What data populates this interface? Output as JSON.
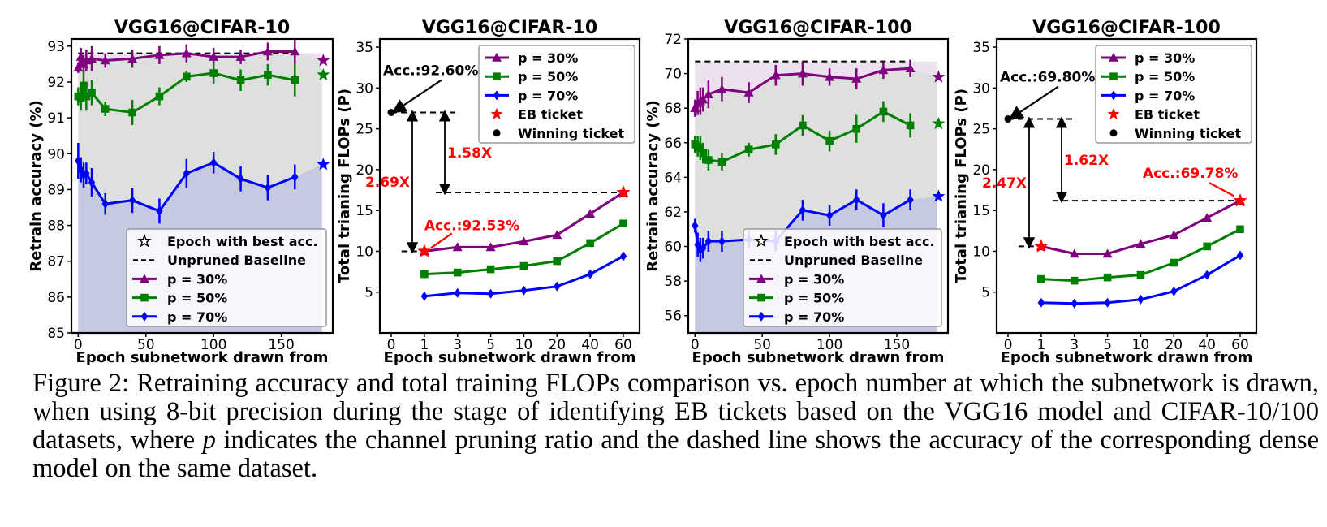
{
  "colors": {
    "p30": "#800080",
    "p50": "#008000",
    "p70": "#0000ff",
    "eb": "#ff0000",
    "win": "#000000",
    "fill30": "#ede0ef",
    "fill50": "#dde0dc",
    "fill70": "#c5c9e2",
    "annot": "#ff0000"
  },
  "caption": {
    "label": "Figure 2:",
    "part1": "Retraining accuracy and total training FLOPs comparison vs. epoch number at which the subnetwork is drawn, when using 8-bit precision during the stage of identifying EB tickets based on the VGG16 model and CIFAR-10/100 datasets, where",
    "symbol": "p",
    "part2": "indicates the channel pruning ratio and the dashed line shows the accuracy of the corresponding dense model on the same dataset."
  },
  "chart_data": [
    {
      "type": "line",
      "title": "VGG16@CIFAR-10",
      "xlabel": "Epoch subnetwork drawn from",
      "ylabel": "Retrain accuracy (%)",
      "xlim": [
        -5,
        188
      ],
      "ylim": [
        85,
        93.2
      ],
      "xticks": [
        0,
        50,
        100,
        150
      ],
      "yticks": [
        85,
        86,
        87,
        88,
        89,
        90,
        91,
        92,
        93
      ],
      "baseline": {
        "label": "Unpruned Baseline",
        "value": 92.8
      },
      "legend_position": "lower-right",
      "legend": [
        {
          "marker": "star-open",
          "label": "Epoch with best acc."
        },
        {
          "marker": "dash",
          "label": "Unpruned Baseline"
        },
        {
          "marker": "triangle",
          "series": "p30",
          "label": "p = 30%"
        },
        {
          "marker": "square",
          "series": "p50",
          "label": "p = 50%"
        },
        {
          "marker": "diamond",
          "series": "p70",
          "label": "p = 70%"
        }
      ],
      "series": [
        {
          "key": "p30",
          "name": "p = 30%",
          "x": [
            0,
            2,
            4,
            6,
            10,
            20,
            40,
            60,
            80,
            100,
            120,
            140,
            160
          ],
          "y": [
            92.4,
            92.7,
            92.5,
            92.6,
            92.65,
            92.6,
            92.65,
            92.75,
            92.8,
            92.7,
            92.7,
            92.85,
            92.85
          ],
          "err": [
            0.15,
            0.25,
            0.25,
            0.3,
            0.35,
            0.2,
            0.25,
            0.25,
            0.25,
            0.25,
            0.2,
            0.25,
            0.35
          ],
          "best": {
            "x": 181,
            "y": 92.6
          }
        },
        {
          "key": "p50",
          "name": "p = 50%",
          "x": [
            0,
            2,
            4,
            6,
            10,
            20,
            40,
            60,
            80,
            100,
            120,
            140,
            160
          ],
          "y": [
            91.6,
            91.55,
            91.9,
            91.6,
            91.7,
            91.25,
            91.15,
            91.6,
            92.15,
            92.25,
            92.05,
            92.2,
            92.05
          ],
          "err": [
            0.25,
            0.35,
            0.45,
            0.4,
            0.35,
            0.2,
            0.35,
            0.25,
            0.15,
            0.3,
            0.3,
            0.3,
            0.45
          ],
          "best": {
            "x": 181,
            "y": 92.2
          }
        },
        {
          "key": "p70",
          "name": "p = 70%",
          "x": [
            0,
            2,
            4,
            6,
            10,
            20,
            40,
            60,
            80,
            100,
            120,
            140,
            160
          ],
          "y": [
            89.8,
            89.55,
            89.4,
            89.45,
            89.2,
            88.6,
            88.7,
            88.4,
            89.45,
            89.75,
            89.3,
            89.05,
            89.35
          ],
          "err": [
            0.5,
            0.35,
            0.35,
            0.3,
            0.4,
            0.3,
            0.35,
            0.35,
            0.4,
            0.3,
            0.35,
            0.35,
            0.35
          ],
          "best": {
            "x": 181,
            "y": 89.7
          }
        }
      ]
    },
    {
      "type": "line",
      "title": "VGG16@CIFAR-10",
      "xlabel": "Epoch subnetwork drawn from",
      "ylabel": "Total trianing FLOPs (P)",
      "categories": [
        "0",
        "1",
        "3",
        "5",
        "10",
        "20",
        "40",
        "60"
      ],
      "ylim": [
        0,
        36
      ],
      "yticks": [
        5,
        10,
        15,
        20,
        25,
        30,
        35
      ],
      "legend_position": "upper-right",
      "legend": [
        {
          "marker": "triangle",
          "series": "p30",
          "label": "p = 30%"
        },
        {
          "marker": "square",
          "series": "p50",
          "label": "p = 50%"
        },
        {
          "marker": "diamond",
          "series": "p70",
          "label": "p = 70%"
        },
        {
          "marker": "star",
          "series": "eb",
          "label": "EB ticket"
        },
        {
          "marker": "dot",
          "series": "win",
          "label": "Winning ticket"
        }
      ],
      "series": [
        {
          "key": "p30",
          "name": "p = 30%",
          "y": [
            null,
            10.0,
            10.5,
            10.5,
            11.2,
            12.0,
            14.6,
            17.2
          ]
        },
        {
          "key": "p50",
          "name": "p = 50%",
          "y": [
            null,
            7.2,
            7.4,
            7.8,
            8.2,
            8.8,
            11.0,
            13.4
          ]
        },
        {
          "key": "p70",
          "name": "p = 70%",
          "y": [
            null,
            4.5,
            4.9,
            4.8,
            5.2,
            5.7,
            7.2,
            9.4
          ]
        }
      ],
      "eb_points": [
        {
          "x": "1",
          "y": 10.0
        },
        {
          "x": "60",
          "y": 17.2
        }
      ],
      "winning_ticket": {
        "x": "0",
        "y": 27.0
      },
      "annotations": {
        "winning_acc": "Acc.:92.60%",
        "eb_acc": "Acc.:92.53%",
        "ratio_long": "2.69X",
        "ratio_short": "1.58X"
      }
    },
    {
      "type": "line",
      "title": "VGG16@CIFAR-100",
      "xlabel": "Epoch subnetwork drawn from",
      "ylabel": "Retrain accuracy (%)",
      "xlim": [
        -5,
        188
      ],
      "ylim": [
        55,
        72
      ],
      "xticks": [
        0,
        50,
        100,
        150
      ],
      "yticks": [
        56,
        58,
        60,
        62,
        64,
        66,
        68,
        70,
        72
      ],
      "baseline": {
        "label": "Unpruned Baseline",
        "value": 70.7
      },
      "legend_position": "lower-right",
      "legend": [
        {
          "marker": "star-open",
          "label": "Epoch with best acc."
        },
        {
          "marker": "dash",
          "label": "Unpruned Baseline"
        },
        {
          "marker": "triangle",
          "series": "p30",
          "label": "p = 30%"
        },
        {
          "marker": "square",
          "series": "p50",
          "label": "p = 50%"
        },
        {
          "marker": "diamond",
          "series": "p70",
          "label": "p = 70%"
        }
      ],
      "series": [
        {
          "key": "p30",
          "name": "p = 30%",
          "x": [
            0,
            2,
            4,
            6,
            10,
            20,
            40,
            60,
            80,
            100,
            120,
            140,
            160
          ],
          "y": [
            68.0,
            68.3,
            68.4,
            68.5,
            68.8,
            69.1,
            68.9,
            69.9,
            70.0,
            69.8,
            69.7,
            70.2,
            70.3
          ],
          "err": [
            0.5,
            0.7,
            0.8,
            0.7,
            0.8,
            0.7,
            0.6,
            0.6,
            0.7,
            0.5,
            0.6,
            0.5,
            0.5
          ],
          "best": {
            "x": 181,
            "y": 69.8
          }
        },
        {
          "key": "p50",
          "name": "p = 50%",
          "x": [
            0,
            2,
            4,
            6,
            10,
            20,
            40,
            60,
            80,
            100,
            120,
            140,
            160
          ],
          "y": [
            65.9,
            65.8,
            65.7,
            65.4,
            65.0,
            64.9,
            65.6,
            65.9,
            67.0,
            66.1,
            66.8,
            67.8,
            67.0
          ],
          "err": [
            0.5,
            0.6,
            0.7,
            0.6,
            0.6,
            0.5,
            0.4,
            0.6,
            0.6,
            0.6,
            0.8,
            0.6,
            0.7
          ],
          "best": {
            "x": 181,
            "y": 67.1
          }
        },
        {
          "key": "p70",
          "name": "p = 70%",
          "x": [
            0,
            2,
            4,
            6,
            10,
            20,
            40,
            60,
            80,
            100,
            120,
            140,
            160
          ],
          "y": [
            61.2,
            60.1,
            59.8,
            59.9,
            60.3,
            60.3,
            60.4,
            60.3,
            62.1,
            61.8,
            62.7,
            61.8,
            62.7
          ],
          "err": [
            0.4,
            0.7,
            0.7,
            0.6,
            0.6,
            0.6,
            0.5,
            0.6,
            0.6,
            0.6,
            0.6,
            0.7,
            0.6
          ],
          "best": {
            "x": 181,
            "y": 62.9
          }
        }
      ]
    },
    {
      "type": "line",
      "title": "VGG16@CIFAR-100",
      "xlabel": "Epoch subnetwork drawn from",
      "ylabel": "Total trianing FLOPs (P)",
      "categories": [
        "0",
        "1",
        "3",
        "5",
        "10",
        "20",
        "40",
        "60"
      ],
      "ylim": [
        0,
        36
      ],
      "yticks": [
        5,
        10,
        15,
        20,
        25,
        30,
        35
      ],
      "legend_position": "upper-right",
      "legend": [
        {
          "marker": "triangle",
          "series": "p30",
          "label": "p = 30%"
        },
        {
          "marker": "square",
          "series": "p50",
          "label": "p = 50%"
        },
        {
          "marker": "diamond",
          "series": "p70",
          "label": "p = 70%"
        },
        {
          "marker": "star",
          "series": "eb",
          "label": "EB ticket"
        },
        {
          "marker": "dot",
          "series": "win",
          "label": "Winning ticket"
        }
      ],
      "series": [
        {
          "key": "p30",
          "name": "p = 30%",
          "y": [
            null,
            10.6,
            9.7,
            9.7,
            10.9,
            12.0,
            14.1,
            16.2
          ]
        },
        {
          "key": "p50",
          "name": "p = 50%",
          "y": [
            null,
            6.6,
            6.4,
            6.8,
            7.1,
            8.6,
            10.6,
            12.7
          ]
        },
        {
          "key": "p70",
          "name": "p = 70%",
          "y": [
            null,
            3.7,
            3.6,
            3.7,
            4.1,
            5.1,
            7.1,
            9.5
          ]
        }
      ],
      "eb_points": [
        {
          "x": "1",
          "y": 10.6
        },
        {
          "x": "60",
          "y": 16.2
        }
      ],
      "winning_ticket": {
        "x": "0",
        "y": 26.2
      },
      "annotations": {
        "winning_acc": "Acc.:69.80%",
        "eb_acc": "Acc.:69.78%",
        "ratio_long": "2.47X",
        "ratio_short": "1.62X"
      }
    }
  ]
}
